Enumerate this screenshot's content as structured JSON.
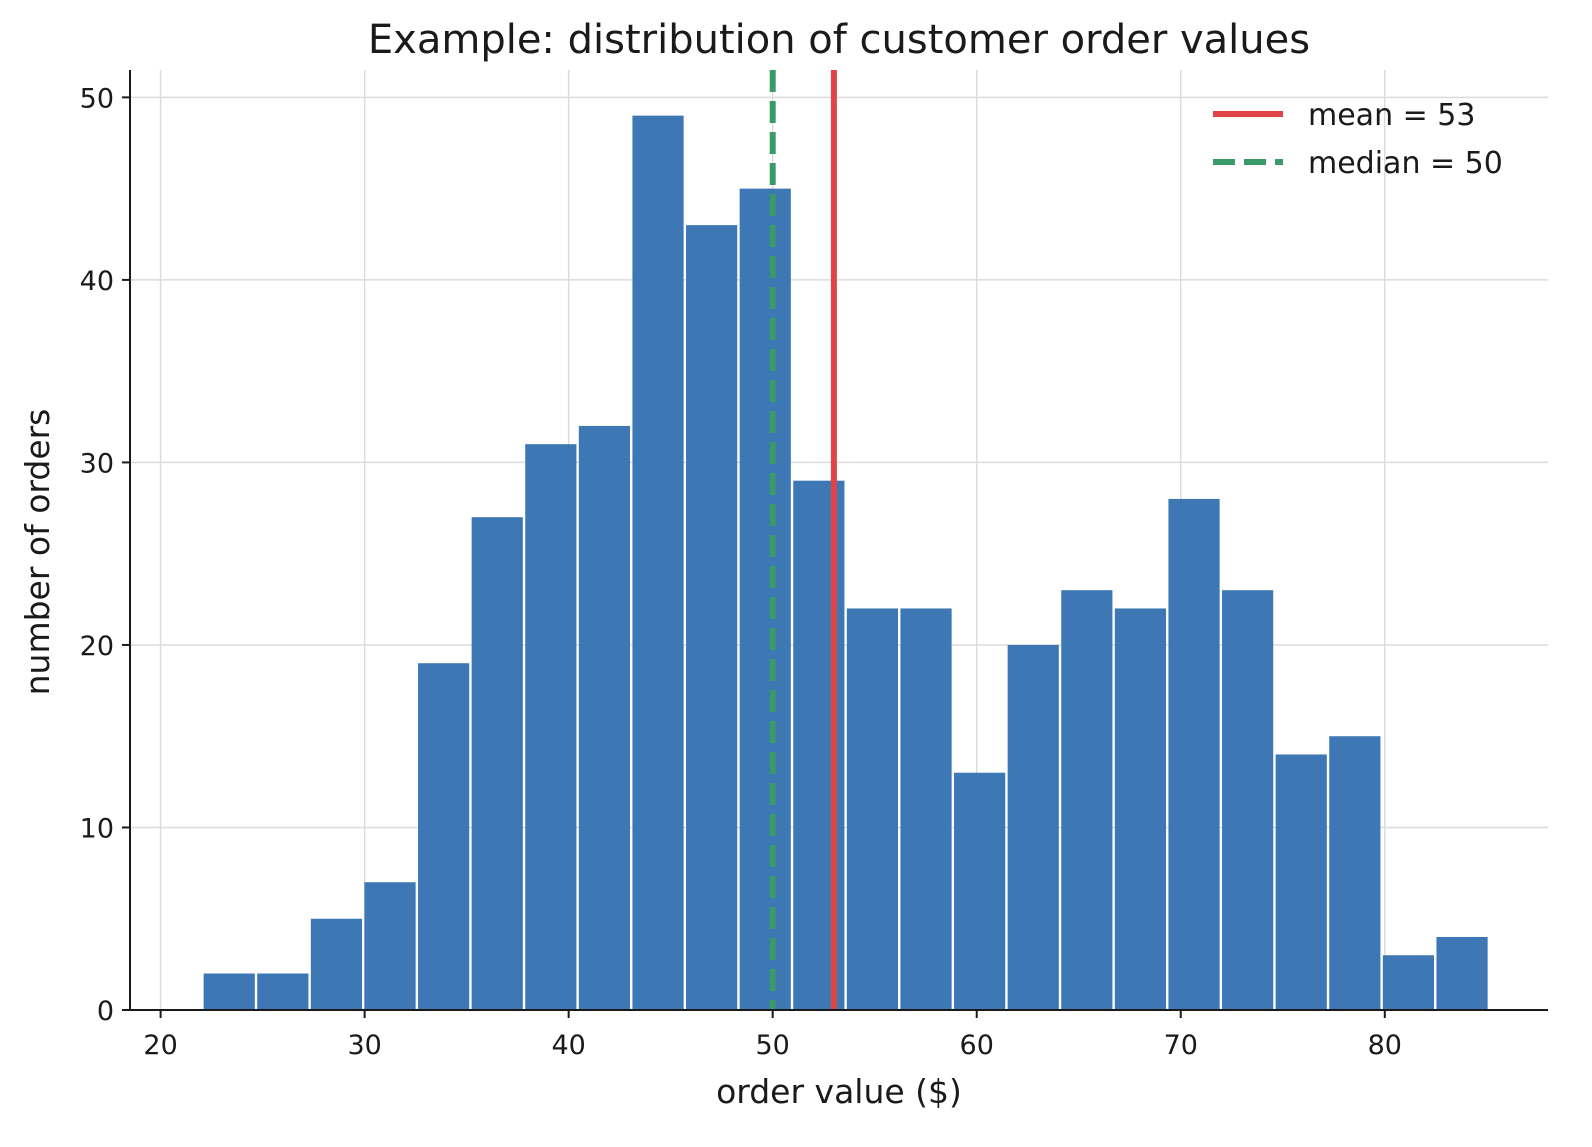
{
  "chart_data": {
    "type": "bar",
    "title": "Example: distribution of customer order values",
    "xlabel": "order value ($)",
    "ylabel": "number of orders",
    "xlim": [
      18.5,
      88
    ],
    "ylim": [
      0,
      51.5
    ],
    "xticks": [
      20,
      30,
      40,
      50,
      60,
      70,
      80
    ],
    "yticks": [
      0,
      10,
      20,
      30,
      40,
      50
    ],
    "grid": true,
    "legend_position": "top-right",
    "bar_color": "#3d78b4",
    "bin_start": 22.05,
    "bin_width": 2.6271,
    "counts": [
      2,
      2,
      5,
      7,
      19,
      27,
      31,
      32,
      49,
      43,
      45,
      29,
      22,
      22,
      13,
      20,
      23,
      22,
      28,
      23,
      14,
      15,
      3,
      4
    ],
    "reference_lines": [
      {
        "label": "mean = 53",
        "x": 53,
        "color": "#e04444",
        "style": "solid"
      },
      {
        "label": "median = 50",
        "x": 50,
        "color": "#3a9a68",
        "style": "dashed"
      }
    ]
  }
}
